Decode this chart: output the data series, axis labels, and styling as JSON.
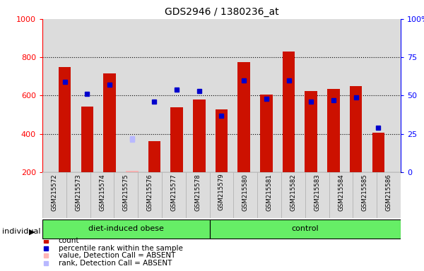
{
  "title": "GDS2946 / 1380236_at",
  "samples": [
    "GSM215572",
    "GSM215573",
    "GSM215574",
    "GSM215575",
    "GSM215576",
    "GSM215577",
    "GSM215578",
    "GSM215579",
    "GSM215580",
    "GSM215581",
    "GSM215582",
    "GSM215583",
    "GSM215584",
    "GSM215585",
    "GSM215586"
  ],
  "counts": [
    750,
    543,
    715,
    205,
    360,
    540,
    580,
    527,
    775,
    605,
    830,
    625,
    635,
    648,
    405
  ],
  "percentile_ranks": [
    59,
    51,
    57,
    null,
    46,
    54,
    53,
    37,
    60,
    48,
    60,
    46,
    47,
    49,
    29
  ],
  "absent_value": [
    null,
    null,
    null,
    205,
    null,
    null,
    null,
    null,
    null,
    null,
    null,
    null,
    null,
    null,
    null
  ],
  "absent_rank_val": [
    null,
    null,
    null,
    370,
    null,
    null,
    null,
    null,
    null,
    null,
    null,
    null,
    null,
    null,
    null
  ],
  "absent_blue_rank": [
    null,
    null,
    null,
    22,
    null,
    null,
    null,
    null,
    null,
    null,
    null,
    null,
    null,
    null,
    null
  ],
  "groups": [
    "diet-induced obese",
    "diet-induced obese",
    "diet-induced obese",
    "diet-induced obese",
    "diet-induced obese",
    "diet-induced obese",
    "diet-induced obese",
    "control",
    "control",
    "control",
    "control",
    "control",
    "control",
    "control",
    "control"
  ],
  "ylim": [
    200,
    1000
  ],
  "y2lim": [
    0,
    100
  ],
  "bar_color": "#CC1100",
  "blue_marker_color": "#0000CC",
  "absent_bar_color": "#FFB6B6",
  "absent_rank_color": "#B8B8FF",
  "bg_color": "#DCDCDC",
  "legend_items": [
    {
      "label": "count",
      "color": "#CC1100"
    },
    {
      "label": "percentile rank within the sample",
      "color": "#0000CC"
    },
    {
      "label": "value, Detection Call = ABSENT",
      "color": "#FFB6B6"
    },
    {
      "label": "rank, Detection Call = ABSENT",
      "color": "#B8B8FF"
    }
  ]
}
